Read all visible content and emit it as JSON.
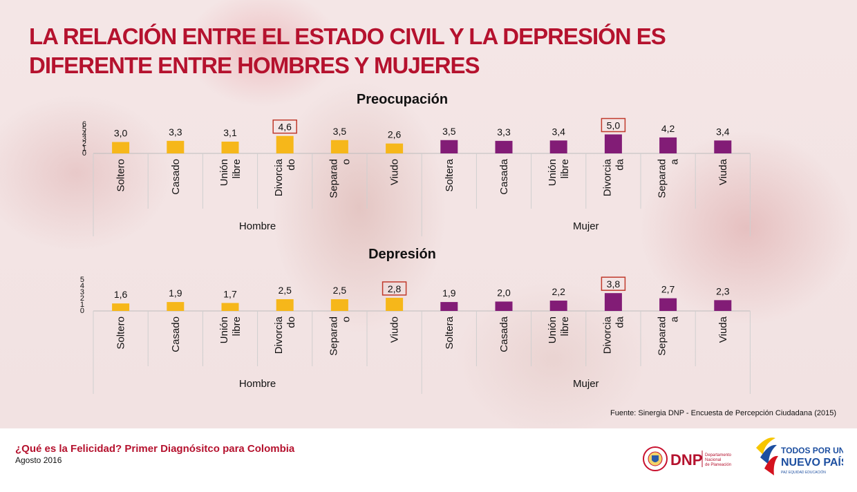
{
  "title_line1": "LA RELACIÓN ENTRE EL ESTADO CIVIL Y LA DEPRESIÓN ES",
  "title_line2": "DIFERENTE ENTRE HOMBRES Y MUJERES",
  "colors": {
    "hombre": "#f6b71a",
    "mujer": "#821c76",
    "title": "#b5122e",
    "highlight": "#c0392b"
  },
  "chart_data": [
    {
      "type": "bar",
      "title": "Preocupación",
      "categories": [
        "Soltero",
        "Casado",
        "Unión libre",
        "Divorciado",
        "Separado",
        "Viudo",
        "Soltera",
        "Casada",
        "Unión libre",
        "Divorciada",
        "Separada",
        "Viuda"
      ],
      "category_label_lines": [
        [
          "Soltero"
        ],
        [
          "Casado"
        ],
        [
          "Unión",
          "libre"
        ],
        [
          "Divorcia",
          "do"
        ],
        [
          "Separad",
          "o"
        ],
        [
          "Viudo"
        ],
        [
          "Soltera"
        ],
        [
          "Casada"
        ],
        [
          "Unión",
          "libre"
        ],
        [
          "Divorcia",
          "da"
        ],
        [
          "Separad",
          "a"
        ],
        [
          "Viuda"
        ]
      ],
      "groups": [
        {
          "name": "Hombre",
          "categories": [
            "Soltero",
            "Casado",
            "Unión libre",
            "Divorciado",
            "Separado",
            "Viudo"
          ]
        },
        {
          "name": "Mujer",
          "categories": [
            "Soltera",
            "Casada",
            "Unión libre",
            "Divorciada",
            "Separada",
            "Viuda"
          ]
        }
      ],
      "values": [
        3.0,
        3.3,
        3.1,
        4.6,
        3.5,
        2.6,
        3.5,
        3.3,
        3.4,
        5.0,
        4.2,
        3.4
      ],
      "value_labels": [
        "3,0",
        "3,3",
        "3,1",
        "4,6",
        "3,5",
        "2,6",
        "3,5",
        "3,3",
        "3,4",
        "5,0",
        "4,2",
        "3,4"
      ],
      "highlighted": [
        3,
        9
      ],
      "y_ticks": [
        "0",
        "1",
        "2",
        "3",
        "4",
        "5",
        "6"
      ],
      "ylim": [
        0,
        6
      ]
    },
    {
      "type": "bar",
      "title": "Depresión",
      "categories": [
        "Soltero",
        "Casado",
        "Unión libre",
        "Divorciado",
        "Separado",
        "Viudo",
        "Soltera",
        "Casada",
        "Unión libre",
        "Divorciada",
        "Separada",
        "Viuda"
      ],
      "category_label_lines": [
        [
          "Soltero"
        ],
        [
          "Casado"
        ],
        [
          "Unión",
          "libre"
        ],
        [
          "Divorcia",
          "do"
        ],
        [
          "Separad",
          "o"
        ],
        [
          "Viudo"
        ],
        [
          "Soltera"
        ],
        [
          "Casada"
        ],
        [
          "Unión",
          "libre"
        ],
        [
          "Divorcia",
          "da"
        ],
        [
          "Separad",
          "a"
        ],
        [
          "Viuda"
        ]
      ],
      "groups": [
        {
          "name": "Hombre",
          "categories": [
            "Soltero",
            "Casado",
            "Unión libre",
            "Divorciado",
            "Separado",
            "Viudo"
          ]
        },
        {
          "name": "Mujer",
          "categories": [
            "Soltera",
            "Casada",
            "Unión libre",
            "Divorciada",
            "Separada",
            "Viuda"
          ]
        }
      ],
      "values": [
        1.6,
        1.9,
        1.7,
        2.5,
        2.5,
        2.8,
        1.9,
        2.0,
        2.2,
        3.8,
        2.7,
        2.3
      ],
      "value_labels": [
        "1,6",
        "1,9",
        "1,7",
        "2,5",
        "2,5",
        "2,8",
        "1,9",
        "2,0",
        "2,2",
        "3,8",
        "2,7",
        "2,3"
      ],
      "highlighted": [
        5,
        9
      ],
      "y_ticks": [
        "0",
        "1",
        "2",
        "3",
        "4",
        "5"
      ],
      "ylim": [
        0,
        5
      ]
    }
  ],
  "source": "Fuente: Sinergia DNP - Encuesta de Percepción Ciudadana (2015)",
  "footer": {
    "title": "¿Qué es la Felicidad? Primer Diagnósitco para Colombia",
    "date": "Agosto 2016"
  },
  "logos": {
    "dnp": {
      "text": "DNP",
      "sub": [
        "Departamento",
        "Nacional",
        "de Planeación"
      ]
    },
    "tpnp": {
      "line1": "TODOS POR UN",
      "line2": "NUEVO PAÍS",
      "line3": "PAZ  EQUIDAD  EDUCACIÓN"
    }
  }
}
